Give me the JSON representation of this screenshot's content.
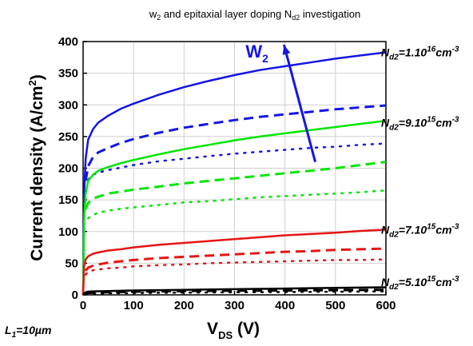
{
  "chart_data": {
    "type": "line",
    "title": "w2 and epitaxial layer doping Nd2 investigation",
    "title_parts": {
      "a": "w",
      "a_sub": "2",
      "b": " and epitaxial layer doping N",
      "b_sub": "d2",
      "c": " investigation"
    },
    "xlabel": "VDS (V)",
    "xlabel_parts": {
      "main": "V",
      "sub": "DS",
      "unit": " (V)"
    },
    "ylabel": "Current density (A/cm2)",
    "ylabel_parts": {
      "main": "Current density (A/cm",
      "sup": "2",
      "end": ")"
    },
    "xlim": [
      0,
      600
    ],
    "ylim": [
      0,
      400
    ],
    "xticks": [
      0,
      100,
      200,
      300,
      400,
      500,
      600
    ],
    "yticks": [
      0,
      50,
      100,
      150,
      200,
      250,
      300,
      350,
      400
    ],
    "grid": true,
    "annotations": [
      {
        "text": "Nd2=1.1016cm-3",
        "parts": {
          "n": "N",
          "n_sub": "d2",
          "val": "=1.10",
          "val_sup": "16",
          "unit": "cm",
          "unit_sup": "-3"
        },
        "anchor_x": 602,
        "anchor_y": 383
      },
      {
        "text": "Nd2=9.1015cm-3",
        "parts": {
          "n": "N",
          "n_sub": "d2",
          "val": "=9.10",
          "val_sup": "15",
          "unit": "cm",
          "unit_sup": "-3"
        },
        "anchor_x": 602,
        "anchor_y": 272
      },
      {
        "text": "Nd2=7.1015cm-3",
        "parts": {
          "n": "N",
          "n_sub": "d2",
          "val": "=7.10",
          "val_sup": "15",
          "unit": "cm",
          "unit_sup": "-3"
        },
        "anchor_x": 602,
        "anchor_y": 103
      },
      {
        "text": "Nd2=5.1015cm-3",
        "parts": {
          "n": "N",
          "n_sub": "d2",
          "val": "=5.10",
          "val_sup": "15",
          "unit": "cm",
          "unit_sup": "-3"
        },
        "anchor_x": 602,
        "anchor_y": 20
      }
    ],
    "arrow": {
      "label": "W2",
      "label_parts": {
        "main": "W",
        "sub": "2"
      },
      "from": [
        460,
        210
      ],
      "to": [
        398,
        395
      ],
      "color": "#1414e6"
    },
    "footnote": "L1=10µm",
    "footnote_parts": {
      "main": "L",
      "sub": "1",
      "rest": "=10µm"
    },
    "series": [
      {
        "color": "#1414e6",
        "dash": "solid",
        "x": [
          0,
          2,
          5,
          10,
          20,
          30,
          50,
          75,
          100,
          150,
          200,
          250,
          300,
          350,
          400,
          450,
          500,
          550,
          600
        ],
        "y": [
          0,
          160,
          215,
          245,
          262,
          272,
          283,
          294,
          302,
          316,
          328,
          338,
          347,
          355,
          361,
          367,
          373,
          378,
          383
        ]
      },
      {
        "color": "#1414e6",
        "dash": "dash",
        "x": [
          5,
          10,
          20,
          30,
          50,
          75,
          100,
          150,
          200,
          250,
          300,
          350,
          400,
          450,
          500,
          550,
          600
        ],
        "y": [
          180,
          203,
          218,
          225,
          232,
          240,
          246,
          256,
          264,
          270,
          276,
          281,
          285,
          289,
          293,
          296,
          299
        ]
      },
      {
        "color": "#1414e6",
        "dash": "dot",
        "x": [
          10,
          20,
          30,
          50,
          75,
          100,
          150,
          200,
          250,
          300,
          350,
          400,
          450,
          500,
          550,
          600
        ],
        "y": [
          182,
          190,
          193,
          197,
          201,
          205,
          211,
          215,
          219,
          223,
          226,
          229,
          232,
          234,
          237,
          239
        ]
      },
      {
        "color": "#00e600",
        "dash": "solid",
        "x": [
          0,
          2,
          5,
          10,
          20,
          30,
          50,
          75,
          100,
          150,
          200,
          250,
          300,
          350,
          400,
          450,
          500,
          550,
          600
        ],
        "y": [
          0,
          120,
          160,
          180,
          190,
          196,
          202,
          208,
          213,
          222,
          230,
          237,
          244,
          250,
          255,
          260,
          265,
          270,
          275
        ]
      },
      {
        "color": "#00e600",
        "dash": "dash",
        "x": [
          5,
          10,
          20,
          30,
          50,
          75,
          100,
          150,
          200,
          250,
          300,
          350,
          400,
          450,
          500,
          550,
          600
        ],
        "y": [
          135,
          145,
          152,
          155,
          160,
          163,
          166,
          171,
          176,
          180,
          184,
          188,
          192,
          196,
          200,
          205,
          210
        ]
      },
      {
        "color": "#00e600",
        "dash": "dot",
        "x": [
          10,
          20,
          30,
          50,
          75,
          100,
          150,
          200,
          250,
          300,
          350,
          400,
          450,
          500,
          550,
          600
        ],
        "y": [
          121,
          126,
          130,
          133,
          136,
          138,
          142,
          146,
          148,
          151,
          154,
          156,
          158,
          160,
          162,
          165
        ]
      },
      {
        "color": "#e61414",
        "dash": "solid",
        "x": [
          0,
          2,
          5,
          10,
          20,
          30,
          50,
          75,
          100,
          150,
          200,
          250,
          300,
          350,
          400,
          450,
          500,
          550,
          600
        ],
        "y": [
          0,
          45,
          56,
          61,
          65,
          67,
          70,
          72,
          75,
          79,
          82,
          85,
          88,
          91,
          94,
          96,
          98,
          101,
          103
        ]
      },
      {
        "color": "#e61414",
        "dash": "dash",
        "x": [
          5,
          10,
          20,
          30,
          50,
          75,
          100,
          150,
          200,
          250,
          300,
          350,
          400,
          450,
          500,
          550,
          600
        ],
        "y": [
          38,
          43,
          46,
          48,
          51,
          53,
          55,
          58,
          60,
          62,
          64,
          66,
          68,
          69,
          71,
          72,
          73
        ]
      },
      {
        "color": "#e61414",
        "dash": "dot",
        "x": [
          5,
          10,
          20,
          30,
          50,
          75,
          100,
          150,
          200,
          250,
          300,
          350,
          400,
          450,
          500,
          550,
          600
        ],
        "y": [
          32,
          36,
          39,
          40,
          42,
          43,
          45,
          47,
          48,
          50,
          51,
          52,
          53,
          54,
          55,
          55,
          56
        ]
      },
      {
        "color": "#000000",
        "dash": "solid",
        "x": [
          0,
          5,
          10,
          20,
          50,
          100,
          200,
          300,
          400,
          500,
          600
        ],
        "y": [
          0,
          4,
          5,
          5.5,
          6,
          7,
          8,
          9,
          10,
          11,
          12
        ]
      },
      {
        "color": "#000000",
        "dash": "dash",
        "x": [
          5,
          10,
          20,
          50,
          100,
          200,
          300,
          400,
          500,
          600
        ],
        "y": [
          2,
          3,
          3.5,
          4,
          5,
          6,
          6.5,
          7,
          7.5,
          8
        ]
      },
      {
        "color": "#000000",
        "dash": "dot",
        "x": [
          5,
          10,
          20,
          50,
          100,
          200,
          300,
          400,
          500,
          600
        ],
        "y": [
          1,
          1.5,
          2,
          2.5,
          3,
          3.5,
          4,
          4.5,
          5,
          5.5
        ]
      }
    ]
  }
}
